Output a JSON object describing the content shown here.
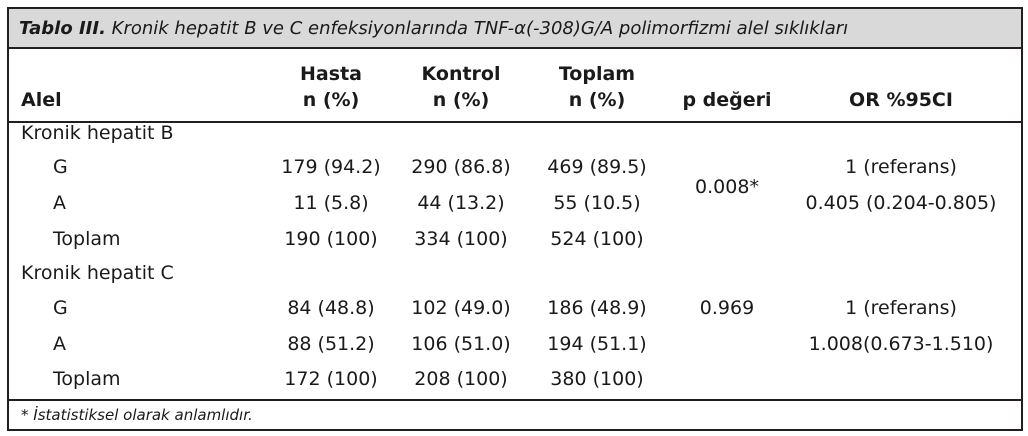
{
  "caption": {
    "label": "Tablo III.",
    "text": "Kronik hepatit B ve C enfeksiyonlarında TNF-α(-308)G/A polimorfizmi alel sıklıkları"
  },
  "headers": {
    "alel": "Alel",
    "hasta_top": "Hasta",
    "hasta_bottom": "n (%)",
    "kontrol_top": "Kontrol",
    "kontrol_bottom": "n (%)",
    "toplam_top": "Toplam",
    "toplam_bottom": "n (%)",
    "p": "p değeri",
    "or": "OR %95CI"
  },
  "groups": [
    {
      "name": "Kronik hepatit B",
      "p_value": "0.008*",
      "rows": [
        {
          "alel": "G",
          "hasta": "179 (94.2)",
          "kontrol": "290 (86.8)",
          "toplam": "469 (89.5)",
          "or": "1 (referans)"
        },
        {
          "alel": "A",
          "hasta": "11 (5.8)",
          "kontrol": "44 (13.2)",
          "toplam": "55 (10.5)",
          "or": "0.405 (0.204-0.805)"
        },
        {
          "alel": "Toplam",
          "hasta": "190 (100)",
          "kontrol": "334 (100)",
          "toplam": "524 (100)",
          "or": ""
        }
      ]
    },
    {
      "name": "Kronik hepatit C",
      "p_value": "0.969",
      "rows": [
        {
          "alel": "G",
          "hasta": "84 (48.8)",
          "kontrol": "102 (49.0)",
          "toplam": "186 (48.9)",
          "or": "1 (referans)"
        },
        {
          "alel": "A",
          "hasta": "88 (51.2)",
          "kontrol": "106 (51.0)",
          "toplam": "194 (51.1)",
          "or": "1.008(0.673-1.510)"
        },
        {
          "alel": "Toplam",
          "hasta": "172 (100)",
          "kontrol": "208 (100)",
          "toplam": "380 (100)",
          "or": ""
        }
      ]
    }
  ],
  "footnote": "* İstatistiksel olarak anlamlıdır."
}
